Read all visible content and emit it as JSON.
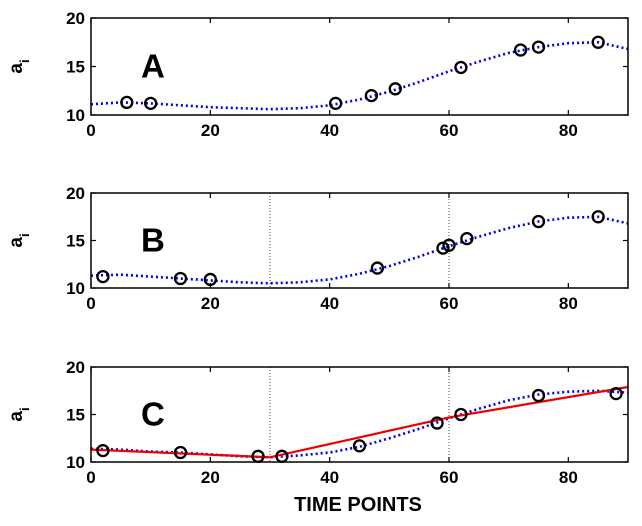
{
  "chart_data": [
    {
      "type": "scatter",
      "panel_label": "A",
      "ylabel": "a",
      "ylabel_subscript": "i",
      "xlim": [
        0,
        90
      ],
      "ylim": [
        10,
        20
      ],
      "x_ticks": [
        0,
        20,
        40,
        60,
        80
      ],
      "y_ticks": [
        10,
        15,
        20
      ],
      "x_tick_labels": [
        "0",
        "20",
        "40",
        "60",
        "80"
      ],
      "y_tick_labels": [
        "10",
        "15",
        "20"
      ],
      "vlines": [],
      "points": [
        {
          "x": 6,
          "y": 11.3
        },
        {
          "x": 10,
          "y": 11.2
        },
        {
          "x": 41,
          "y": 11.2
        },
        {
          "x": 47,
          "y": 12.0
        },
        {
          "x": 51,
          "y": 12.7
        },
        {
          "x": 62,
          "y": 14.9
        },
        {
          "x": 72,
          "y": 16.7
        },
        {
          "x": 75,
          "y": 17.0
        },
        {
          "x": 85,
          "y": 17.5
        }
      ],
      "curve": [
        {
          "x": 0,
          "y": 11.1
        },
        {
          "x": 5,
          "y": 11.3
        },
        {
          "x": 10,
          "y": 11.2
        },
        {
          "x": 15,
          "y": 11.0
        },
        {
          "x": 20,
          "y": 10.8
        },
        {
          "x": 25,
          "y": 10.7
        },
        {
          "x": 30,
          "y": 10.6
        },
        {
          "x": 35,
          "y": 10.7
        },
        {
          "x": 40,
          "y": 11.0
        },
        {
          "x": 45,
          "y": 11.6
        },
        {
          "x": 50,
          "y": 12.4
        },
        {
          "x": 55,
          "y": 13.4
        },
        {
          "x": 60,
          "y": 14.5
        },
        {
          "x": 65,
          "y": 15.5
        },
        {
          "x": 70,
          "y": 16.4
        },
        {
          "x": 75,
          "y": 17.0
        },
        {
          "x": 80,
          "y": 17.4
        },
        {
          "x": 85,
          "y": 17.5
        },
        {
          "x": 90,
          "y": 16.8
        }
      ],
      "fit": []
    },
    {
      "type": "scatter",
      "panel_label": "B",
      "ylabel": "a",
      "ylabel_subscript": "i",
      "xlim": [
        0,
        90
      ],
      "ylim": [
        10,
        20
      ],
      "x_ticks": [
        0,
        20,
        40,
        60,
        80
      ],
      "y_ticks": [
        10,
        15,
        20
      ],
      "x_tick_labels": [
        "0",
        "20",
        "40",
        "60",
        "80"
      ],
      "y_tick_labels": [
        "10",
        "15",
        "20"
      ],
      "vlines": [
        30,
        60
      ],
      "points": [
        {
          "x": 2,
          "y": 11.2
        },
        {
          "x": 15,
          "y": 11.0
        },
        {
          "x": 20,
          "y": 10.9
        },
        {
          "x": 48,
          "y": 12.1
        },
        {
          "x": 59,
          "y": 14.2
        },
        {
          "x": 60,
          "y": 14.5
        },
        {
          "x": 63,
          "y": 15.2
        },
        {
          "x": 75,
          "y": 17.0
        },
        {
          "x": 85,
          "y": 17.5
        }
      ],
      "curve": [
        {
          "x": 0,
          "y": 11.3
        },
        {
          "x": 5,
          "y": 11.4
        },
        {
          "x": 10,
          "y": 11.2
        },
        {
          "x": 15,
          "y": 11.0
        },
        {
          "x": 20,
          "y": 10.8
        },
        {
          "x": 25,
          "y": 10.6
        },
        {
          "x": 30,
          "y": 10.5
        },
        {
          "x": 35,
          "y": 10.6
        },
        {
          "x": 40,
          "y": 10.9
        },
        {
          "x": 45,
          "y": 11.5
        },
        {
          "x": 50,
          "y": 12.3
        },
        {
          "x": 55,
          "y": 13.3
        },
        {
          "x": 60,
          "y": 14.4
        },
        {
          "x": 65,
          "y": 15.4
        },
        {
          "x": 70,
          "y": 16.3
        },
        {
          "x": 75,
          "y": 17.0
        },
        {
          "x": 80,
          "y": 17.4
        },
        {
          "x": 85,
          "y": 17.5
        },
        {
          "x": 90,
          "y": 16.8
        }
      ],
      "fit": []
    },
    {
      "type": "scatter",
      "panel_label": "C",
      "ylabel": "a",
      "ylabel_subscript": "i",
      "xlabel": "TIME POINTS",
      "xlim": [
        0,
        90
      ],
      "ylim": [
        10,
        20
      ],
      "x_ticks": [
        0,
        20,
        40,
        60,
        80
      ],
      "y_ticks": [
        10,
        15,
        20
      ],
      "x_tick_labels": [
        "0",
        "20",
        "40",
        "60",
        "80"
      ],
      "y_tick_labels": [
        "10",
        "15",
        "20"
      ],
      "vlines": [
        30,
        60
      ],
      "points": [
        {
          "x": 2,
          "y": 11.2
        },
        {
          "x": 15,
          "y": 11.0
        },
        {
          "x": 28,
          "y": 10.6
        },
        {
          "x": 32,
          "y": 10.6
        },
        {
          "x": 45,
          "y": 11.7
        },
        {
          "x": 58,
          "y": 14.1
        },
        {
          "x": 62,
          "y": 15.0
        },
        {
          "x": 75,
          "y": 17.0
        },
        {
          "x": 88,
          "y": 17.2
        }
      ],
      "curve": [
        {
          "x": 0,
          "y": 11.4
        },
        {
          "x": 5,
          "y": 11.3
        },
        {
          "x": 10,
          "y": 11.1
        },
        {
          "x": 15,
          "y": 11.0
        },
        {
          "x": 20,
          "y": 10.8
        },
        {
          "x": 25,
          "y": 10.6
        },
        {
          "x": 30,
          "y": 10.5
        },
        {
          "x": 35,
          "y": 10.7
        },
        {
          "x": 40,
          "y": 11.0
        },
        {
          "x": 45,
          "y": 11.6
        },
        {
          "x": 50,
          "y": 12.5
        },
        {
          "x": 55,
          "y": 13.5
        },
        {
          "x": 60,
          "y": 14.6
        },
        {
          "x": 65,
          "y": 15.6
        },
        {
          "x": 70,
          "y": 16.5
        },
        {
          "x": 75,
          "y": 17.1
        },
        {
          "x": 80,
          "y": 17.4
        },
        {
          "x": 85,
          "y": 17.5
        },
        {
          "x": 90,
          "y": 17.3
        }
      ],
      "fit": [
        {
          "x": 0,
          "y": 11.3
        },
        {
          "x": 30,
          "y": 10.5
        },
        {
          "x": 60,
          "y": 14.7
        },
        {
          "x": 90,
          "y": 17.9
        }
      ]
    }
  ],
  "colors": {
    "points": "#000000",
    "curve": "#0000ee",
    "fit": "#ee0000",
    "vline": "#444444",
    "axis": "#000000"
  }
}
